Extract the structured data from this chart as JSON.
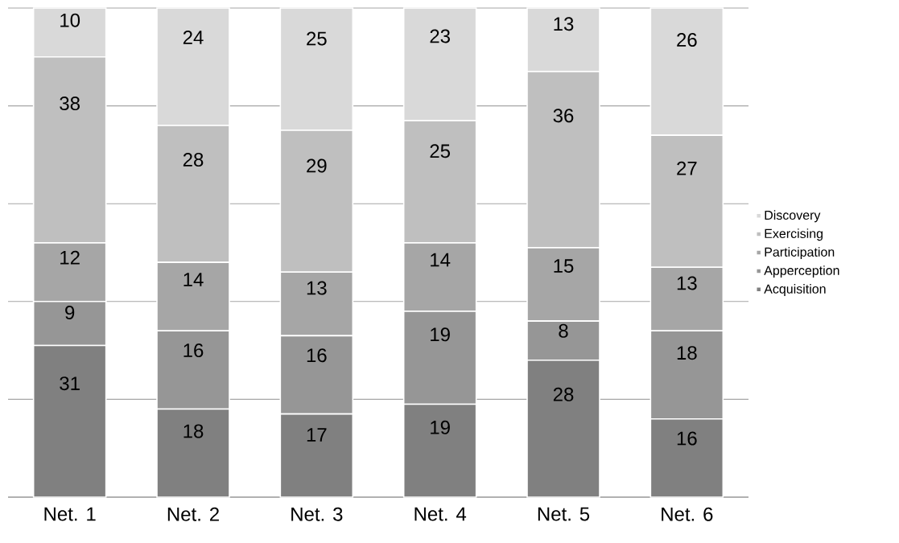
{
  "chart_data": {
    "type": "bar",
    "stacked": true,
    "categories": [
      "Net. 1",
      "Net. 2",
      "Net. 3",
      "Net. 4",
      "Net. 5",
      "Net. 6"
    ],
    "series": [
      {
        "name": "Acquisition",
        "color": "#808080",
        "values": [
          31,
          18,
          17,
          19,
          28,
          16
        ]
      },
      {
        "name": "Apperception",
        "color": "#969696",
        "values": [
          9,
          16,
          16,
          19,
          8,
          18
        ]
      },
      {
        "name": "Participation",
        "color": "#a6a6a6",
        "values": [
          12,
          14,
          13,
          14,
          15,
          13
        ]
      },
      {
        "name": "Exercising",
        "color": "#bfbfbf",
        "values": [
          38,
          28,
          29,
          25,
          36,
          27
        ]
      },
      {
        "name": "Discovery",
        "color": "#d9d9d9",
        "values": [
          10,
          24,
          25,
          23,
          13,
          26
        ]
      }
    ],
    "ylim": [
      0,
      100
    ],
    "yticks": [
      {
        "value": 0,
        "label": null
      },
      {
        "value": 20,
        "label": null
      },
      {
        "value": 40,
        "label": null
      },
      {
        "value": 60,
        "label": null
      },
      {
        "value": 80,
        "label": null
      },
      {
        "value": 100,
        "label": null
      }
    ],
    "grid": "y",
    "legend": "right",
    "tick_labels": "x",
    "data_labels": true
  }
}
